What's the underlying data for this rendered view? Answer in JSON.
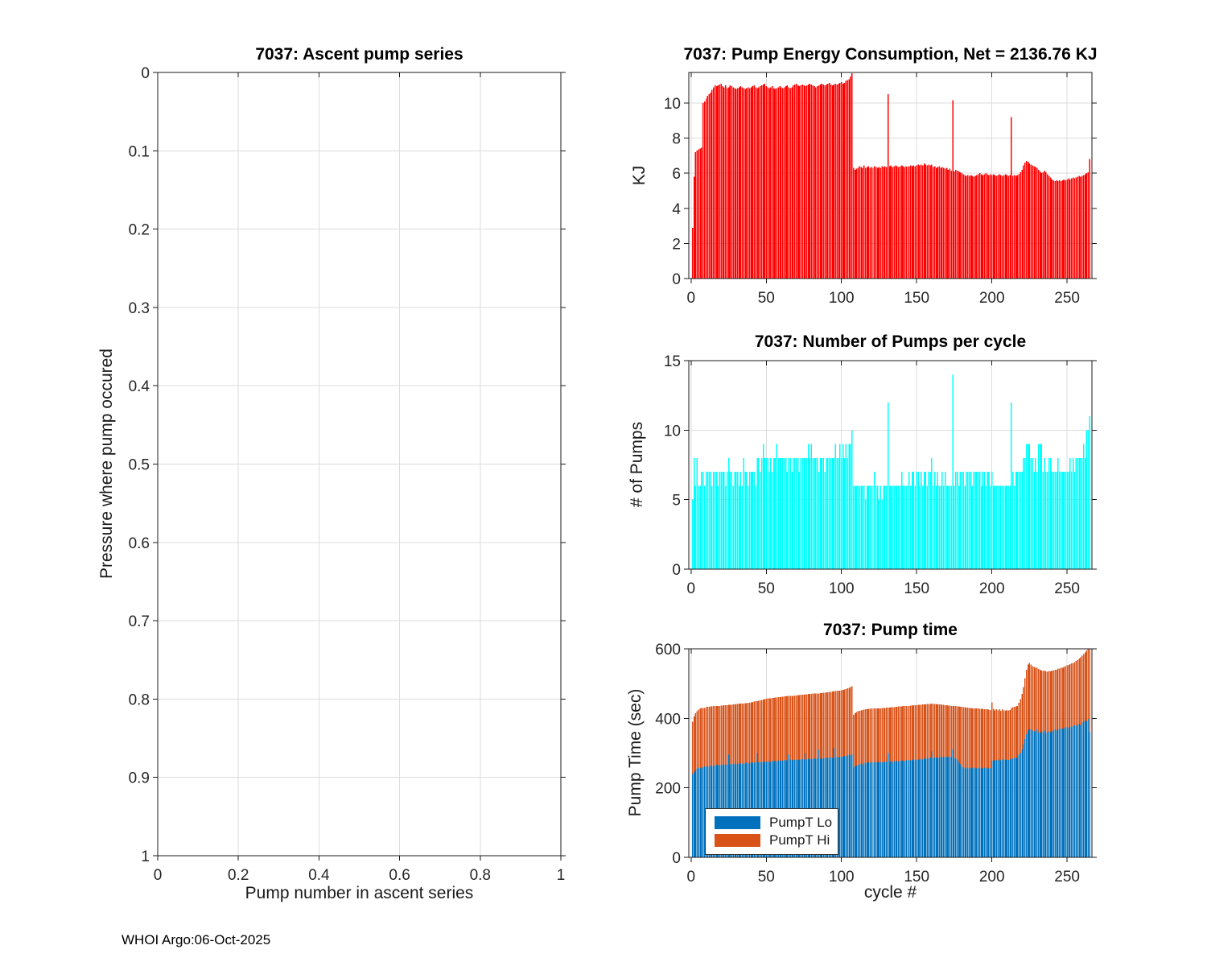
{
  "footer": {
    "text": "WHOI Argo:06-Oct-2025"
  },
  "chart_data": [
    {
      "id": "ascent",
      "type": "bar",
      "title": "7037: Ascent pump series",
      "xlabel": "Pump number in ascent series",
      "ylabel": "Pressure where pump occured",
      "xlim": [
        0,
        1
      ],
      "ylim": [
        0,
        1
      ],
      "y_inverted": true,
      "grid": true,
      "xticks": [
        0,
        0.2,
        0.4,
        0.6,
        0.8,
        1
      ],
      "yticks": [
        0,
        0.1,
        0.2,
        0.3,
        0.4,
        0.5,
        0.6,
        0.7,
        0.8,
        0.9,
        1
      ],
      "values": []
    },
    {
      "id": "energy",
      "type": "bar",
      "title": "7037: Pump Energy Consumption,  Net = 2136.76 KJ",
      "xlabel": "",
      "ylabel": "KJ",
      "net_total_kj": 2136.76,
      "bar_color": "#ff0000",
      "xlim": [
        -1.5,
        266.5
      ],
      "ylim": [
        0,
        11.74
      ],
      "grid": true,
      "xticks": [
        0,
        50,
        100,
        150,
        200,
        250
      ],
      "yticks": [
        0,
        2,
        4,
        6,
        8,
        10
      ],
      "x_start_cycle": 1,
      "values": [
        2.9,
        5.8,
        7.2,
        7.3,
        7.35,
        7.4,
        7.45,
        10.0,
        10.1,
        10.25,
        10.4,
        10.5,
        10.6,
        10.75,
        10.9,
        11.0,
        10.95,
        11.0,
        11.05,
        11.1,
        10.95,
        10.9,
        11.0,
        10.85,
        10.9,
        11.0,
        10.95,
        10.9,
        10.85,
        10.8,
        10.85,
        10.9,
        10.95,
        10.9,
        10.85,
        10.8,
        10.85,
        10.9,
        10.85,
        10.9,
        10.95,
        11.0,
        10.9,
        10.85,
        10.9,
        10.95,
        11.0,
        11.05,
        11.1,
        10.95,
        10.9,
        10.85,
        10.9,
        10.95,
        10.85,
        10.8,
        10.85,
        10.9,
        10.95,
        10.9,
        10.85,
        10.9,
        10.95,
        11.0,
        10.9,
        10.85,
        10.9,
        11.0,
        11.05,
        11.1,
        11.0,
        10.95,
        11.0,
        11.05,
        11.0,
        10.95,
        11.0,
        11.05,
        11.1,
        11.05,
        11.0,
        10.95,
        10.9,
        10.95,
        11.0,
        11.05,
        11.1,
        11.05,
        11.0,
        11.05,
        11.1,
        11.15,
        11.05,
        11.0,
        11.05,
        11.1,
        11.05,
        11.1,
        11.15,
        11.2,
        11.1,
        11.15,
        11.25,
        11.3,
        11.35,
        11.5,
        11.7,
        6.3,
        6.2,
        6.25,
        6.3,
        6.4,
        6.35,
        6.3,
        6.45,
        6.3,
        6.35,
        6.4,
        6.3,
        6.35,
        6.3,
        6.4,
        6.35,
        6.3,
        6.35,
        6.3,
        6.4,
        6.35,
        6.4,
        6.35,
        10.5,
        6.4,
        6.45,
        6.35,
        6.4,
        6.45,
        6.4,
        6.35,
        6.4,
        6.45,
        6.4,
        6.35,
        6.4,
        6.35,
        6.4,
        6.45,
        6.4,
        6.45,
        6.4,
        6.45,
        6.5,
        6.45,
        6.5,
        6.45,
        6.55,
        6.5,
        6.45,
        6.5,
        6.45,
        6.5,
        6.35,
        6.4,
        6.3,
        6.35,
        6.4,
        6.3,
        6.35,
        6.3,
        6.25,
        6.3,
        6.2,
        6.25,
        6.15,
        10.15,
        6.1,
        6.2,
        6.15,
        6.1,
        6.05,
        6.0,
        5.95,
        5.9,
        5.85,
        5.9,
        5.85,
        5.9,
        5.85,
        5.8,
        5.85,
        5.9,
        5.95,
        6.0,
        5.95,
        5.9,
        5.95,
        6.0,
        5.95,
        5.9,
        5.95,
        5.9,
        5.95,
        5.9,
        5.85,
        5.9,
        5.95,
        5.9,
        5.85,
        5.9,
        5.95,
        5.9,
        5.85,
        5.9,
        9.2,
        5.85,
        5.9,
        5.85,
        5.9,
        5.95,
        6.05,
        6.2,
        6.45,
        6.6,
        6.7,
        6.65,
        6.55,
        6.5,
        6.45,
        6.4,
        6.35,
        6.3,
        6.2,
        6.1,
        6.0,
        6.05,
        6.15,
        6.05,
        5.95,
        5.85,
        5.75,
        5.65,
        5.6,
        5.55,
        5.6,
        5.55,
        5.6,
        5.55,
        5.6,
        5.65,
        5.6,
        5.65,
        5.7,
        5.65,
        5.7,
        5.75,
        5.7,
        5.75,
        5.8,
        5.85,
        5.8,
        5.85,
        5.9,
        5.95,
        6.0,
        6.05,
        6.8
      ]
    },
    {
      "id": "pumps",
      "type": "bar",
      "title": "7037: Number of Pumps per cycle",
      "xlabel": "",
      "ylabel": "# of Pumps",
      "bar_color": "#00ffff",
      "xlim": [
        -1.5,
        266.5
      ],
      "ylim": [
        0,
        15
      ],
      "grid": true,
      "xticks": [
        0,
        50,
        100,
        150,
        200,
        250
      ],
      "yticks": [
        0,
        5,
        10,
        15
      ],
      "x_start_cycle": 1,
      "values": [
        5,
        8,
        6,
        8,
        6,
        6,
        7,
        7,
        6,
        7,
        7,
        7,
        7,
        6,
        7,
        7,
        7,
        6,
        7,
        7,
        7,
        7,
        6,
        7,
        8,
        7,
        7,
        6,
        7,
        7,
        7,
        6,
        7,
        6,
        8,
        7,
        7,
        6,
        7,
        7,
        7,
        7,
        6,
        8,
        8,
        7,
        8,
        9,
        8,
        8,
        8,
        7,
        8,
        7,
        8,
        8,
        9,
        8,
        8,
        8,
        8,
        8,
        8,
        7,
        8,
        8,
        7,
        8,
        8,
        8,
        8,
        7,
        8,
        8,
        8,
        8,
        8,
        9,
        8,
        9,
        8,
        8,
        8,
        8,
        7,
        8,
        8,
        8,
        7,
        8,
        8,
        8,
        8,
        8,
        8,
        9,
        8,
        8,
        9,
        8,
        9,
        8,
        9,
        8,
        9,
        9,
        10,
        6,
        6,
        6,
        6,
        6,
        6,
        6,
        6,
        5,
        6,
        6,
        6,
        6,
        6,
        7,
        6,
        6,
        5,
        6,
        5,
        6,
        6,
        6,
        12,
        6,
        6,
        6,
        6,
        6,
        6,
        6,
        6,
        7,
        6,
        6,
        6,
        6,
        7,
        6,
        7,
        7,
        6,
        7,
        7,
        6,
        7,
        6,
        7,
        7,
        6,
        7,
        7,
        8,
        6,
        7,
        6,
        7,
        6,
        6,
        7,
        6,
        7,
        6,
        6,
        6,
        6,
        14,
        6,
        7,
        7,
        6,
        7,
        7,
        7,
        6,
        7,
        7,
        7,
        7,
        6,
        7,
        7,
        7,
        7,
        7,
        6,
        7,
        7,
        6,
        7,
        7,
        6,
        7,
        6,
        6,
        6,
        6,
        6,
        6,
        6,
        6,
        6,
        6,
        6,
        6,
        12,
        7,
        6,
        7,
        7,
        7,
        7,
        7,
        8,
        8,
        9,
        9,
        9,
        8,
        8,
        7,
        8,
        7,
        9,
        9,
        9,
        7,
        8,
        7,
        7,
        8,
        8,
        7,
        7,
        7,
        7,
        8,
        7,
        7,
        7,
        7,
        7,
        7,
        7,
        8,
        7,
        8,
        7,
        8,
        8,
        8,
        8,
        8,
        9,
        8,
        10,
        10,
        11
      ]
    },
    {
      "id": "pumptime",
      "type": "stacked-bar",
      "title": "7037: Pump time",
      "xlabel": "cycle #",
      "ylabel": "Pump Time (sec)",
      "xlim": [
        -1.5,
        266.5
      ],
      "ylim": [
        0,
        600
      ],
      "grid": true,
      "xticks": [
        0,
        50,
        100,
        150,
        200,
        250
      ],
      "yticks": [
        0,
        200,
        400,
        600
      ],
      "x_start_cycle": 1,
      "legend_position": "bottom-left",
      "legend": [
        {
          "label": "PumpT Lo",
          "color": "#0072bd"
        },
        {
          "label": "PumpT Hi",
          "color": "#d95319"
        }
      ],
      "series": [
        {
          "name": "PumpT Lo",
          "color": "#0072bd",
          "values": [
            240,
            245,
            250,
            255,
            258,
            256,
            260,
            258,
            262,
            260,
            263,
            261,
            264,
            262,
            265,
            263,
            266,
            264,
            266,
            265,
            267,
            265,
            268,
            266,
            295,
            267,
            269,
            267,
            270,
            268,
            270,
            268,
            271,
            269,
            272,
            270,
            272,
            270,
            273,
            271,
            273,
            272,
            274,
            300,
            273,
            275,
            273,
            276,
            274,
            276,
            275,
            277,
            275,
            278,
            276,
            278,
            276,
            279,
            277,
            279,
            278,
            280,
            278,
            280,
            295,
            281,
            279,
            281,
            280,
            282,
            280,
            282,
            281,
            283,
            281,
            300,
            282,
            284,
            282,
            284,
            283,
            285,
            283,
            285,
            310,
            284,
            286,
            284,
            286,
            285,
            287,
            285,
            288,
            286,
            315,
            287,
            289,
            287,
            290,
            288,
            290,
            292,
            290,
            293,
            295,
            293,
            296,
            258,
            262,
            264,
            266,
            268,
            270,
            268,
            272,
            270,
            272,
            274,
            272,
            274,
            272,
            275,
            273,
            275,
            273,
            275,
            273,
            276,
            274,
            276,
            300,
            275,
            277,
            275,
            277,
            276,
            278,
            276,
            278,
            277,
            279,
            277,
            280,
            278,
            280,
            279,
            281,
            279,
            282,
            280,
            282,
            281,
            284,
            282,
            285,
            283,
            286,
            284,
            287,
            305,
            285,
            288,
            286,
            288,
            286,
            289,
            287,
            290,
            288,
            290,
            288,
            290,
            288,
            310,
            286,
            284,
            282,
            275,
            268,
            262,
            258,
            256,
            258,
            256,
            258,
            256,
            258,
            256,
            258,
            256,
            258,
            256,
            258,
            256,
            258,
            256,
            258,
            256,
            257,
            278,
            280,
            278,
            280,
            279,
            281,
            279,
            281,
            281,
            280,
            282,
            280,
            282,
            285,
            284,
            286,
            285,
            287,
            295,
            300,
            310,
            325,
            340,
            355,
            365,
            370,
            368,
            365,
            363,
            362,
            370,
            360,
            358,
            362,
            360,
            365,
            358,
            360,
            362,
            360,
            363,
            365,
            368,
            365,
            370,
            368,
            372,
            370,
            372,
            374,
            375,
            372,
            376,
            374,
            378,
            380,
            378,
            382,
            385,
            380,
            388,
            390,
            395,
            392,
            398,
            360
          ]
        },
        {
          "name": "PumpT Hi",
          "color": "#d95319",
          "values": [
            150,
            160,
            165,
            165,
            167,
            172,
            170,
            172,
            168,
            172,
            170,
            172,
            170,
            172,
            170,
            172,
            170,
            172,
            170,
            172,
            170,
            173,
            170,
            172,
            144,
            172,
            170,
            173,
            170,
            173,
            171,
            174,
            171,
            174,
            171,
            174,
            172,
            175,
            172,
            175,
            174,
            176,
            175,
            150,
            178,
            177,
            180,
            178,
            181,
            180,
            182,
            181,
            183,
            181,
            183,
            182,
            184,
            182,
            184,
            183,
            184,
            183,
            185,
            184,
            169,
            183,
            186,
            184,
            186,
            184,
            187,
            185,
            187,
            185,
            187,
            169,
            187,
            186,
            188,
            186,
            188,
            186,
            189,
            187,
            162,
            189,
            187,
            190,
            188,
            190,
            188,
            191,
            188,
            191,
            163,
            191,
            190,
            193,
            190,
            193,
            192,
            191,
            194,
            193,
            193,
            197,
            196,
            152,
            153,
            154,
            154,
            154,
            153,
            156,
            153,
            156,
            154,
            153,
            155,
            154,
            156,
            153,
            156,
            154,
            156,
            154,
            157,
            154,
            156,
            155,
            131,
            156,
            155,
            157,
            155,
            157,
            155,
            158,
            156,
            157,
            156,
            158,
            155,
            158,
            156,
            158,
            156,
            159,
            156,
            158,
            157,
            158,
            155,
            158,
            155,
            157,
            155,
            157,
            154,
            137,
            156,
            153,
            155,
            152,
            154,
            151,
            152,
            149,
            150,
            148,
            149,
            147,
            148,
            126,
            149,
            151,
            152,
            159,
            165,
            171,
            174,
            176,
            173,
            175,
            172,
            174,
            171,
            173,
            170,
            172,
            170,
            171,
            169,
            171,
            168,
            170,
            168,
            169,
            167,
            168,
            147,
            145,
            146,
            144,
            145,
            143,
            145,
            142,
            143,
            141,
            143,
            142,
            145,
            148,
            147,
            149,
            148,
            150,
            155,
            160,
            165,
            175,
            185,
            190,
            190,
            187,
            185,
            185,
            183,
            175,
            182,
            182,
            176,
            176,
            173,
            177,
            174,
            174,
            175,
            174,
            173,
            172,
            175,
            173,
            175,
            173,
            176,
            176,
            176,
            177,
            182,
            180,
            184,
            182,
            182,
            187,
            186,
            187,
            196,
            192,
            195,
            195,
            203,
            202,
            240
          ]
        }
      ]
    }
  ]
}
